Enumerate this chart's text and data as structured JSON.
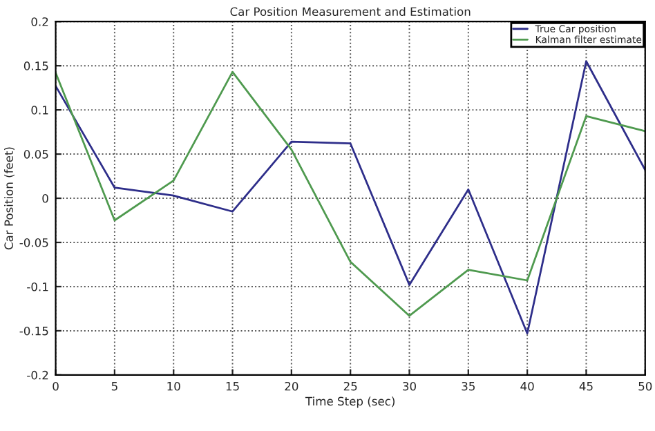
{
  "chart_data": {
    "type": "line",
    "title": "Car Position Measurement and Estimation",
    "xlabel": "Time Step (sec)",
    "ylabel": "Car Position (feet)",
    "x": [
      0,
      5,
      10,
      15,
      20,
      25,
      30,
      35,
      40,
      45,
      50
    ],
    "series": [
      {
        "name": "True Car position",
        "color": "#2e2e8a",
        "values": [
          0.127,
          0.012,
          0.003,
          -0.015,
          0.064,
          0.062,
          -0.098,
          0.01,
          -0.153,
          0.155,
          0.032
        ]
      },
      {
        "name": "Kalman filter estimate",
        "color": "#4f9a4f",
        "values": [
          0.142,
          -0.025,
          0.02,
          0.143,
          0.055,
          -0.072,
          -0.133,
          -0.081,
          -0.093,
          0.093,
          0.076
        ]
      }
    ],
    "xlim": [
      0,
      50
    ],
    "xticks": [
      0,
      5,
      10,
      15,
      20,
      25,
      30,
      35,
      40,
      45,
      50
    ],
    "ylim": [
      -0.2,
      0.2
    ],
    "yticks": [
      -0.2,
      -0.15,
      -0.1,
      -0.05,
      0,
      0.05,
      0.1,
      0.15,
      0.2
    ],
    "grid": true,
    "legend": "top right",
    "marker": "none",
    "line_style": "solid"
  }
}
